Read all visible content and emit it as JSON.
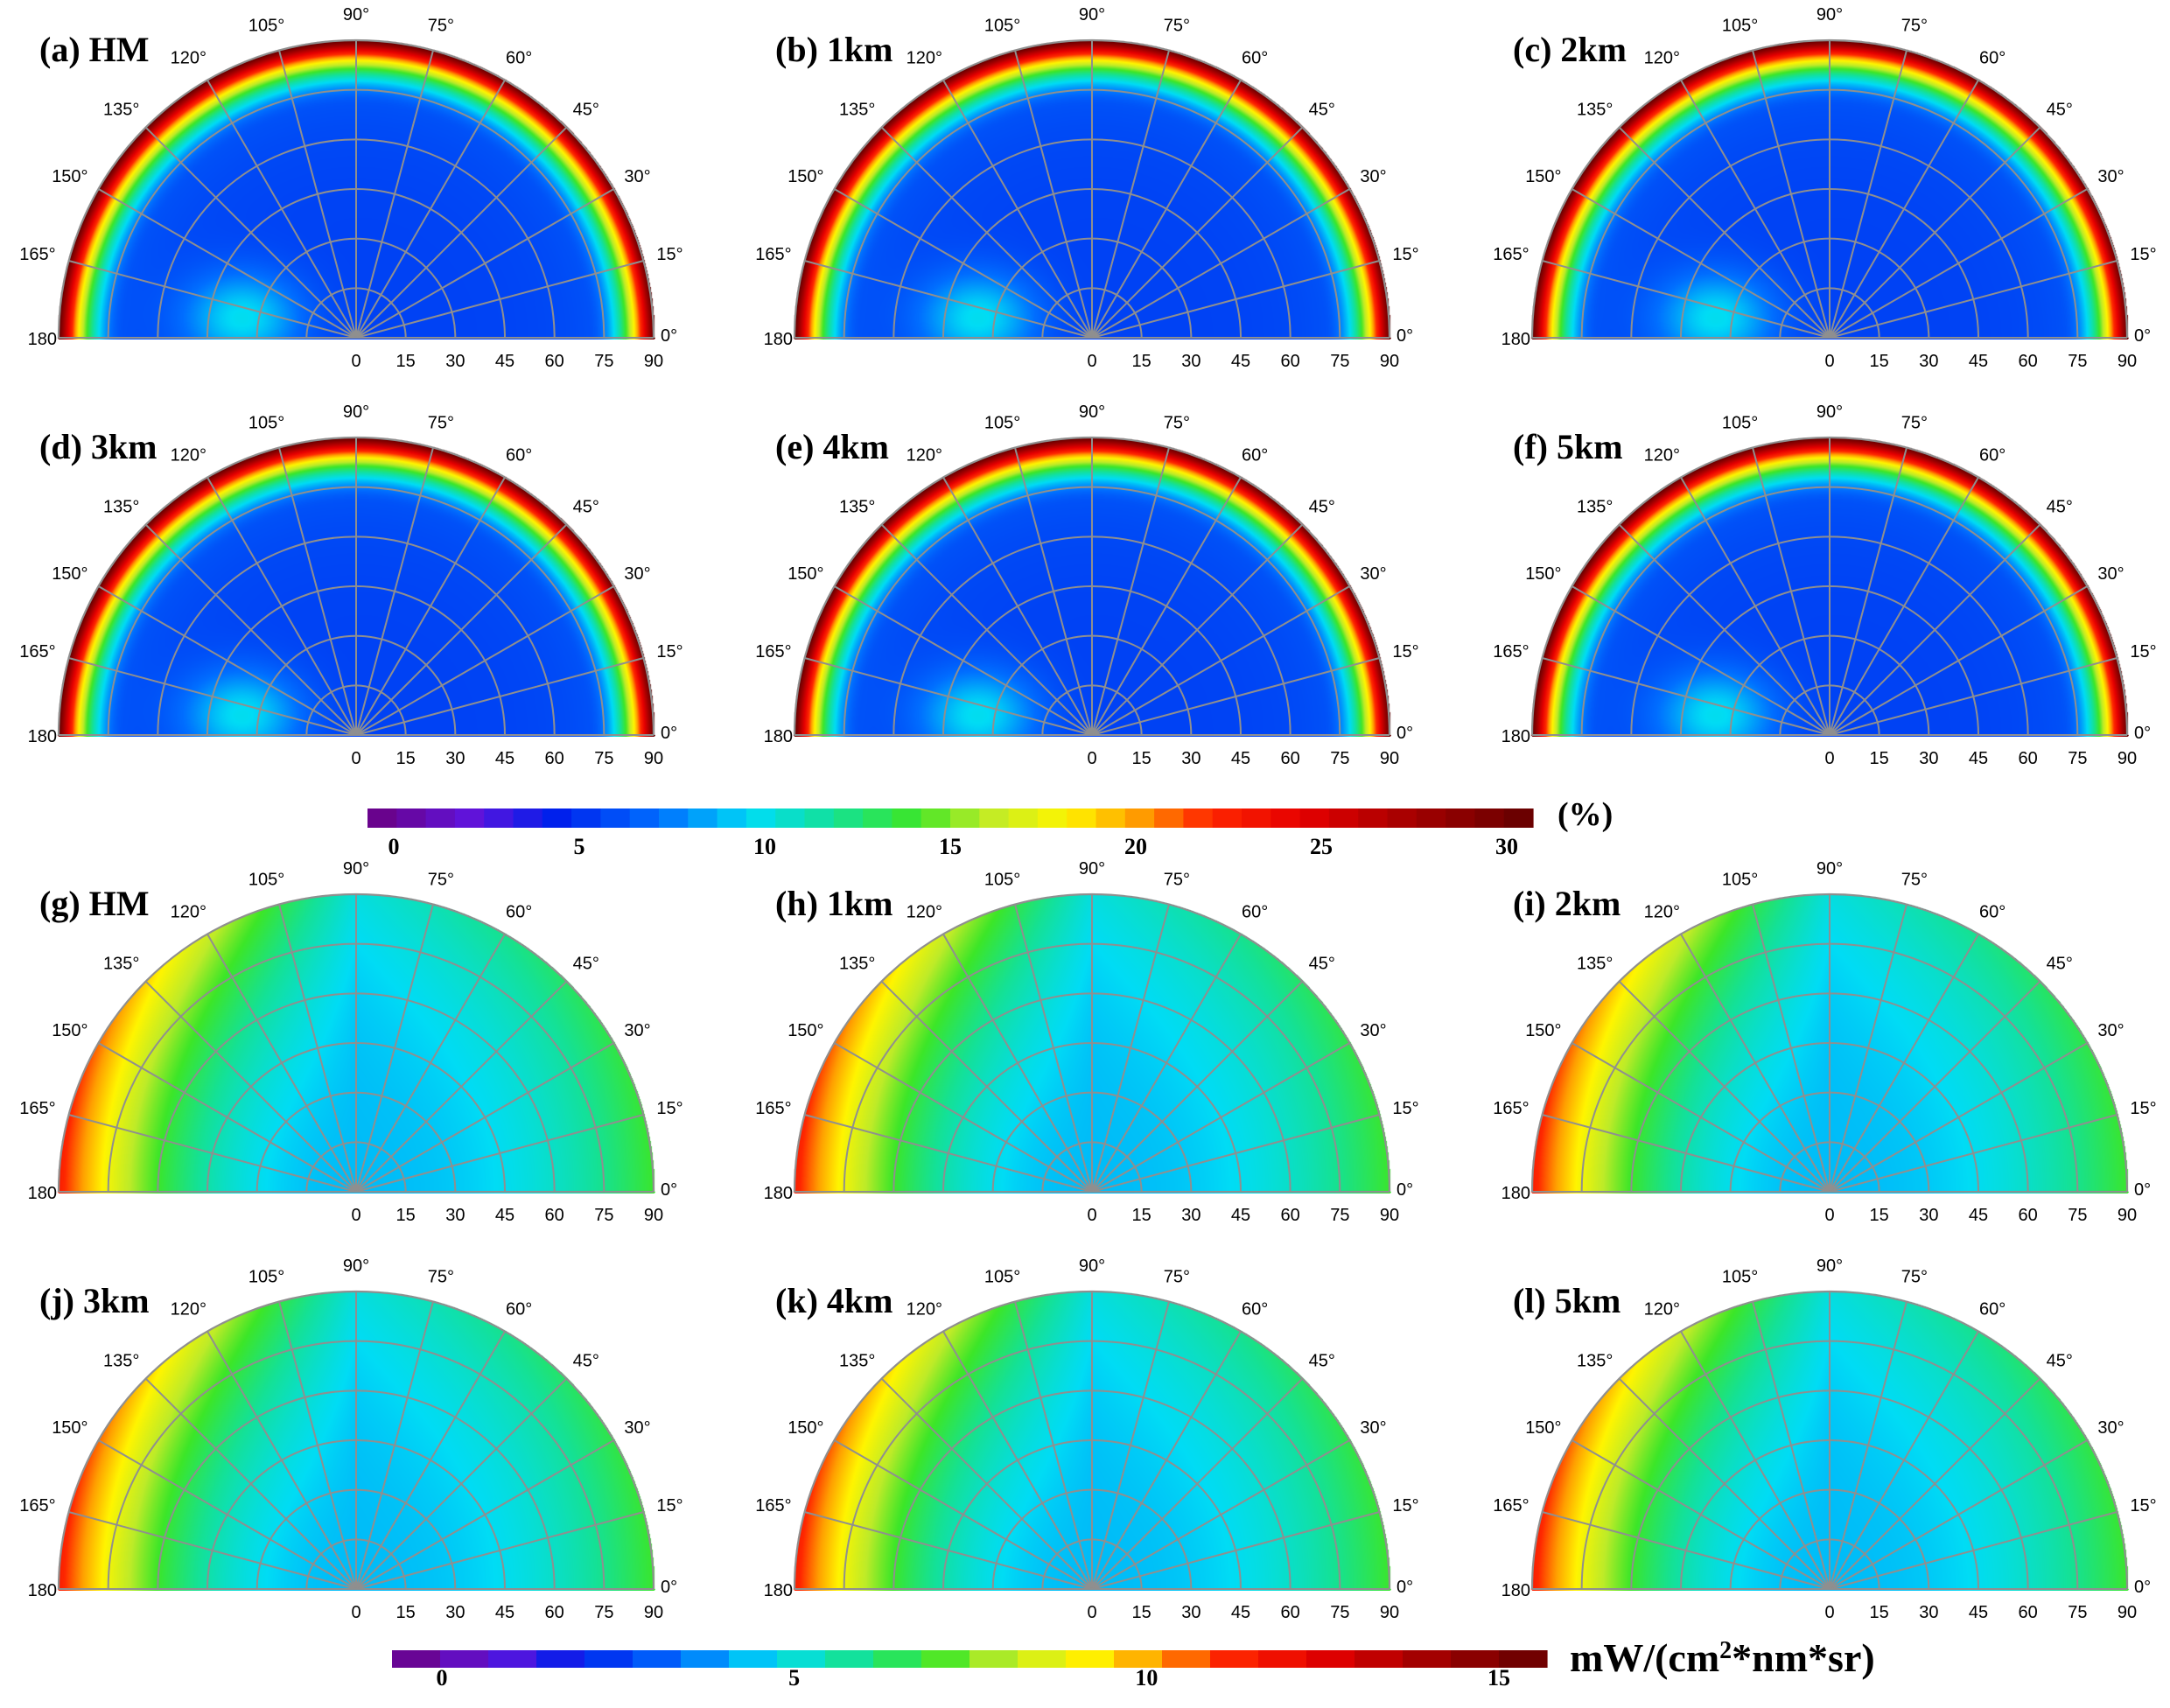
{
  "chart_data": [
    {
      "type": "heatmap",
      "polar": true,
      "panels": [
        "(a) HM",
        "(b) 1km",
        "(c) 2km",
        "(d) 3km",
        "(e) 4km",
        "(f) 5km"
      ],
      "angular_ticks": [
        "0°",
        "15°",
        "30°",
        "45°",
        "60°",
        "75°",
        "90°",
        "105°",
        "120°",
        "135°",
        "150°",
        "165°",
        "180"
      ],
      "radial_ticks": [
        "0",
        "15",
        "30",
        "45",
        "60",
        "75",
        "90"
      ],
      "colorbar": {
        "ticks": [
          "0",
          "5",
          "10",
          "15",
          "20",
          "25",
          "30"
        ],
        "range": [
          0,
          30
        ],
        "unit": "(%)"
      },
      "field_description_values": {
        "background": 6,
        "rim_at_90": 30,
        "hotspot_value": 10,
        "hotspot_azimuth_deg": 170,
        "hotspot_zenith_deg": 35
      }
    },
    {
      "type": "heatmap",
      "polar": true,
      "panels": [
        "(g) HM",
        "(h) 1km",
        "(i) 2km",
        "(j) 3km",
        "(k) 4km",
        "(l) 5km"
      ],
      "angular_ticks": [
        "0°",
        "15°",
        "30°",
        "45°",
        "60°",
        "75°",
        "90°",
        "105°",
        "120°",
        "135°",
        "150°",
        "165°",
        "180"
      ],
      "radial_ticks": [
        "0",
        "15",
        "30",
        "45",
        "60",
        "75",
        "90"
      ],
      "colorbar": {
        "ticks": [
          "0",
          "5",
          "10",
          "15"
        ],
        "range": [
          0,
          15
        ],
        "unit_prefix": "mW/(cm",
        "unit_sup": "2",
        "unit_suffix": "*nm*sr)"
      },
      "field_description_values": {
        "center": 4.6,
        "edge_at_0deg": 6.4,
        "edge_at_180deg": 10.5
      }
    }
  ]
}
